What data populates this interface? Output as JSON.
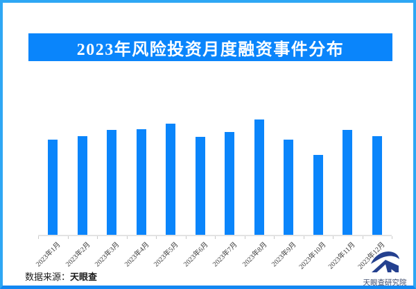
{
  "banner": {
    "title": "2023年风险投资月度融资事件分布"
  },
  "chart_data": {
    "type": "bar",
    "title": "2023年风险投资月度融资事件分布",
    "categories": [
      "2023年1月",
      "2023年2月",
      "2023年3月",
      "2023年4月",
      "2023年5月",
      "2023年6月",
      "2023年7月",
      "2023年8月",
      "2023年9月",
      "2023年10月",
      "2023年11月",
      "2023年12月"
    ],
    "values": [
      137,
      142,
      151,
      152,
      160,
      141,
      148,
      166,
      137,
      115,
      151,
      142
    ],
    "value_note": "no numeric y-axis shown; values are estimated relative bar heights (px)",
    "xlabel": "",
    "ylabel": "",
    "legend": "none",
    "grid": false,
    "bar_color": "#0a85fb",
    "axis_line_color": "#e3e3e3",
    "tick_color": "#c9c9c9",
    "label_color": "#3c3c3c"
  },
  "footer": {
    "source_prefix": "数据来源：",
    "source_name": "天眼查",
    "logo_caption": "天眼查研究院"
  },
  "colors": {
    "banner_bg": "#0a85fb",
    "border_side": "#2ea7f4",
    "border_bottom": "#1287f2",
    "logo_navy": "#24408f"
  }
}
